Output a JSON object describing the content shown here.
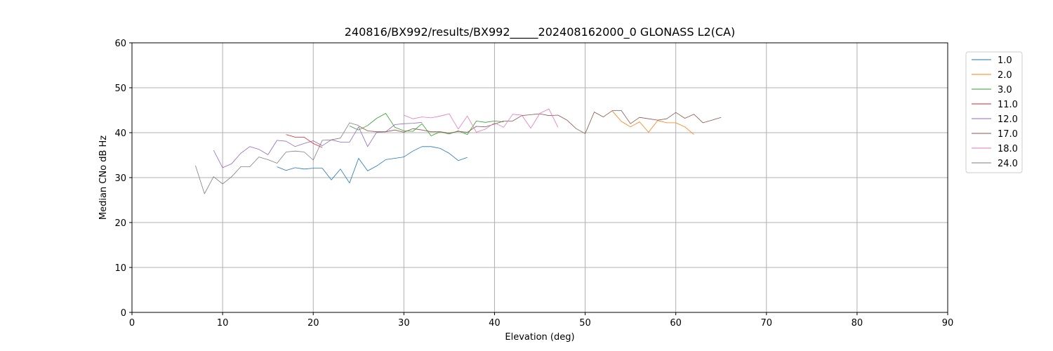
{
  "chart_data": {
    "type": "line",
    "title": "240816/BX992/results/BX992_____202408162000_0 GLONASS L2(CA)",
    "xlabel": "Elevation (deg)",
    "ylabel": "Median CNo dB Hz",
    "xlim": [
      0,
      90
    ],
    "ylim": [
      0,
      60
    ],
    "xticks": [
      0,
      10,
      20,
      30,
      40,
      50,
      60,
      70,
      80,
      90
    ],
    "yticks": [
      0,
      10,
      20,
      30,
      40,
      50,
      60
    ],
    "grid": true,
    "legend_position": "right",
    "series": [
      {
        "name": "1.0",
        "color": "#1f77b4",
        "x": [
          16,
          17,
          18,
          19,
          20,
          21,
          22,
          23,
          24,
          25,
          26,
          27,
          28,
          29,
          30,
          31,
          32,
          33,
          34,
          35,
          36,
          37
        ],
        "y": [
          32.4,
          31.6,
          32.2,
          31.9,
          32.1,
          32.1,
          29.5,
          31.9,
          28.8,
          34.3,
          31.5,
          32.6,
          34.0,
          34.3,
          34.6,
          35.9,
          36.9,
          36.9,
          36.5,
          35.4,
          33.8,
          34.5
        ]
      },
      {
        "name": "2.0",
        "color": "#ff7f0e",
        "x": [
          53,
          54,
          55,
          56,
          57,
          58,
          59,
          60,
          61,
          62
        ],
        "y": [
          44.8,
          42.5,
          41.3,
          42.4,
          40.1,
          42.7,
          42.2,
          42.2,
          41.3,
          39.6
        ]
      },
      {
        "name": "3.0",
        "color": "#2ca02c",
        "x": [
          24,
          25,
          26,
          27,
          28,
          29,
          30,
          31,
          32,
          33,
          34,
          35,
          36,
          37,
          38,
          39,
          40,
          41
        ],
        "y": [
          41.5,
          40.6,
          41.6,
          43.2,
          44.3,
          41.2,
          40.4,
          40.3,
          42.0,
          39.3,
          40.2,
          39.7,
          40.4,
          39.6,
          42.6,
          42.3,
          42.6,
          42.4
        ]
      },
      {
        "name": "11.0",
        "color": "#d62728",
        "x": [
          17,
          18,
          19,
          20,
          21
        ],
        "y": [
          39.6,
          39.0,
          39.0,
          37.6,
          36.7
        ]
      },
      {
        "name": "12.0",
        "color": "#9467bd",
        "x": [
          9,
          10,
          11,
          12,
          13,
          14,
          15,
          16,
          17,
          18,
          19,
          20,
          21,
          22,
          23,
          24,
          25,
          26,
          27,
          28,
          29,
          30,
          31,
          32
        ],
        "y": [
          36.1,
          32.2,
          33.1,
          35.4,
          36.9,
          36.3,
          35.1,
          38.3,
          38.1,
          36.9,
          37.6,
          38.2,
          37.1,
          38.4,
          37.9,
          37.9,
          41.3,
          36.9,
          40.1,
          40.2,
          41.8,
          42.0,
          42.1,
          42.3
        ]
      },
      {
        "name": "17.0",
        "color": "#8c564b",
        "x": [
          25,
          26,
          27,
          28,
          29,
          30,
          31,
          32,
          33,
          34,
          35,
          36,
          37,
          38,
          39,
          40,
          41,
          42,
          43,
          44,
          45,
          46,
          47,
          48,
          49,
          50,
          51,
          52,
          53,
          54,
          55,
          56,
          57,
          58,
          59,
          60,
          61,
          62,
          63,
          64,
          65
        ],
        "y": [
          41.5,
          40.4,
          40.2,
          40.2,
          40.6,
          40.1,
          40.9,
          40.6,
          40.2,
          40.2,
          39.9,
          40.3,
          40.1,
          41.4,
          41.3,
          41.9,
          42.6,
          42.6,
          43.8,
          44.0,
          44.2,
          43.8,
          43.9,
          42.8,
          40.9,
          39.8,
          44.6,
          43.5,
          44.9,
          44.9,
          42.0,
          43.4,
          43.1,
          42.8,
          43.1,
          44.5,
          43.2,
          44.1,
          42.2,
          42.8,
          43.4
        ]
      },
      {
        "name": "18.0",
        "color": "#e377c2",
        "x": [
          30,
          31,
          32,
          33,
          34,
          35,
          36,
          37,
          38,
          39,
          40,
          41,
          42,
          43,
          44,
          45,
          46,
          47
        ],
        "y": [
          43.9,
          43.1,
          43.5,
          43.3,
          43.7,
          44.2,
          40.8,
          43.7,
          40.1,
          40.8,
          42.2,
          41.2,
          44.1,
          43.9,
          41.0,
          44.3,
          45.3,
          41.2
        ]
      },
      {
        "name": "24.0",
        "color": "#7f7f7f",
        "x": [
          7,
          8,
          9,
          10,
          11,
          12,
          13,
          14,
          15,
          16,
          17,
          18,
          19,
          20,
          21,
          22,
          23,
          24,
          25
        ],
        "y": [
          32.7,
          26.4,
          30.2,
          28.6,
          30.2,
          32.4,
          32.4,
          34.6,
          34.0,
          33.2,
          35.7,
          35.9,
          35.7,
          33.9,
          38.3,
          38.4,
          38.8,
          42.2,
          41.6
        ]
      }
    ]
  }
}
